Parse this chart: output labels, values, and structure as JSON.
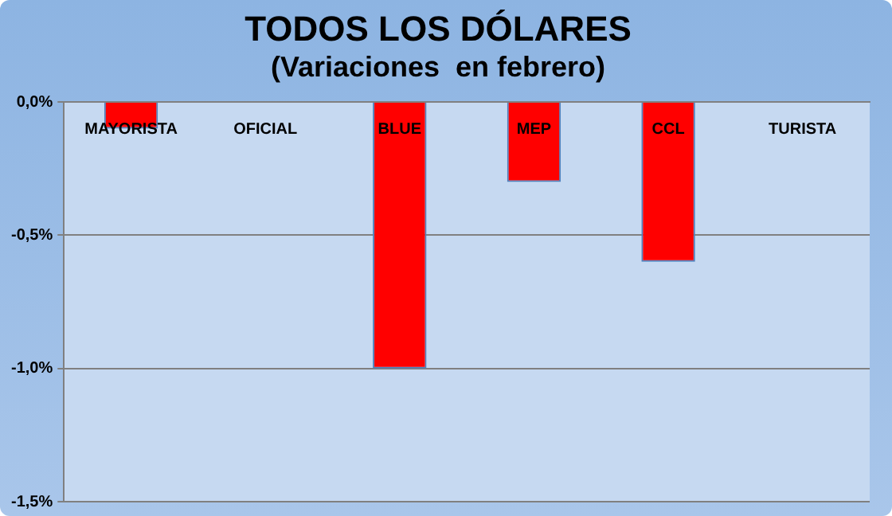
{
  "chart_data": {
    "type": "bar",
    "title": "TODOS LOS DÓLARES",
    "subtitle": "(Variaciones  en febrero)",
    "categories": [
      "MAYORISTA",
      "OFICIAL",
      "BLUE",
      "MEP",
      "CCL",
      "TURISTA"
    ],
    "values": [
      -0.1,
      0,
      -1.0,
      -0.3,
      -0.6,
      0
    ],
    "color": "#ff0000",
    "ylim": [
      -1.5,
      0
    ],
    "yticks": [
      {
        "value": 0,
        "label": "0,0%"
      },
      {
        "value": -0.5,
        "label": "-0,5%"
      },
      {
        "value": -1.0,
        "label": "-1,0%"
      },
      {
        "value": -1.5,
        "label": "-1,5%"
      }
    ],
    "grid": "y",
    "legend": false
  }
}
